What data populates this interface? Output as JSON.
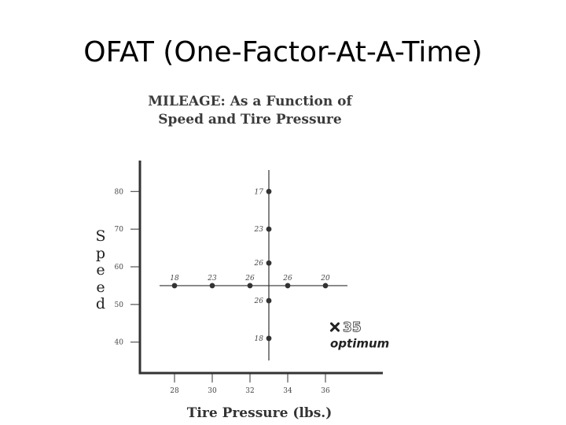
{
  "slide": {
    "title": "OFAT (One-Factor-At-A-Time)"
  },
  "chart_data": {
    "type": "scatter",
    "title_line1": "MILEAGE: As a Function of",
    "title_line2": "Speed and Tire Pressure",
    "xlabel": "Tire Pressure (lbs.)",
    "ylabel": "Speed",
    "xlim": [
      25,
      41
    ],
    "ylim": [
      32,
      88
    ],
    "x_ticks": [
      28,
      30,
      32,
      34,
      36
    ],
    "y_ticks": [
      40,
      50,
      60,
      70,
      80
    ],
    "horizontal_series": {
      "y": 55,
      "points": [
        {
          "x": 28,
          "mileage": "18"
        },
        {
          "x": 30,
          "mileage": "23"
        },
        {
          "x": 32,
          "mileage": "26"
        },
        {
          "x": 34,
          "mileage": "26"
        },
        {
          "x": 36,
          "mileage": "20"
        }
      ]
    },
    "vertical_series": {
      "x": 33,
      "points": [
        {
          "y": 80,
          "mileage": "17"
        },
        {
          "y": 70,
          "mileage": "23"
        },
        {
          "y": 61,
          "mileage": "26"
        },
        {
          "y": 51,
          "mileage": "26"
        },
        {
          "y": 41,
          "mileage": "18"
        }
      ]
    },
    "optimum": {
      "x": 36.5,
      "y": 44,
      "value": "35",
      "label": "optimum"
    },
    "colors": {
      "axis": "#333333",
      "points": "#333333"
    }
  }
}
